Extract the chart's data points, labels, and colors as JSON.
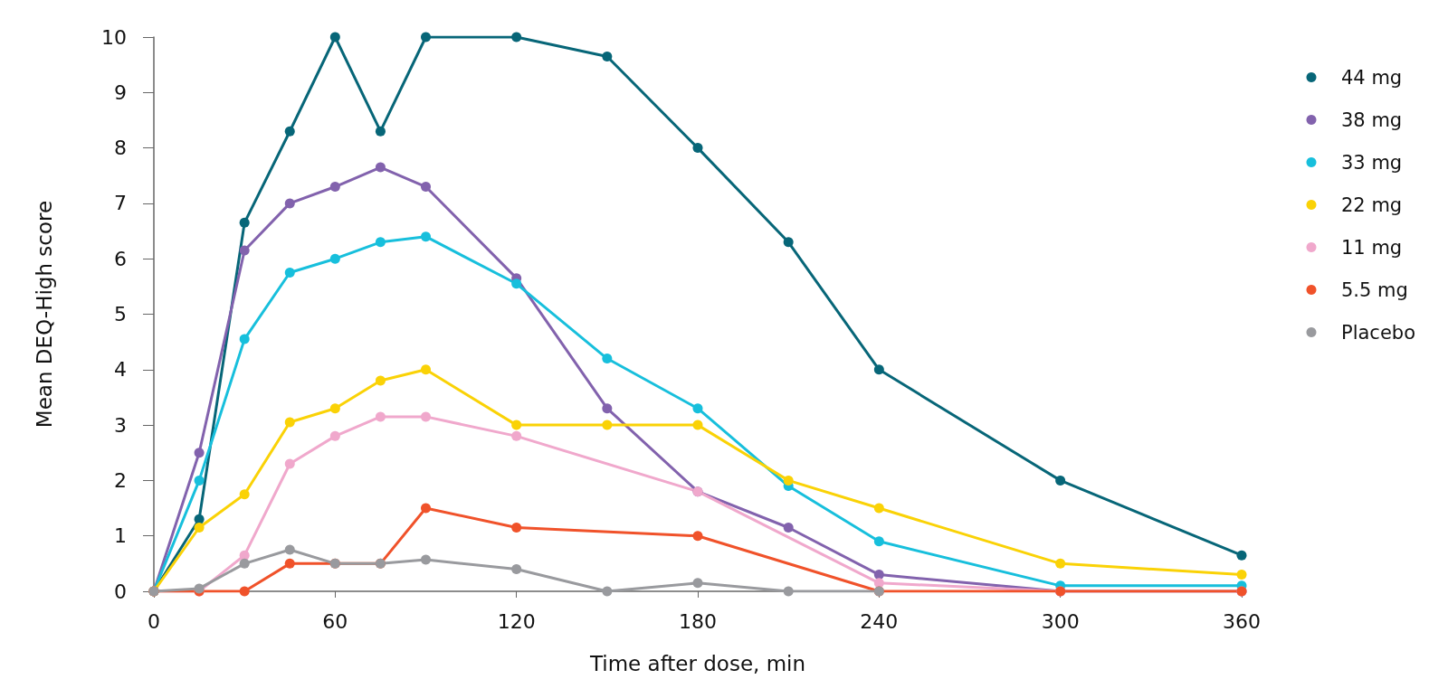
{
  "chart_data": {
    "type": "line",
    "xlabel": "Time after dose, min",
    "ylabel": "Mean DEQ-High score",
    "xlim": [
      0,
      360
    ],
    "xticks": [
      0,
      60,
      120,
      180,
      240,
      300,
      360
    ],
    "ylim": [
      0,
      10
    ],
    "yticks": [
      0,
      1,
      2,
      3,
      4,
      5,
      6,
      7,
      8,
      9,
      10
    ],
    "grid": false,
    "legend": "right",
    "marker": "circle",
    "line_style": "solid",
    "series": [
      {
        "name": "44 mg",
        "color": "#076678",
        "x": [
          0,
          15,
          30,
          45,
          60,
          75,
          90,
          120,
          150,
          180,
          210,
          240,
          300,
          360
        ],
        "values": [
          0,
          1.3,
          6.65,
          8.3,
          10,
          8.3,
          10,
          10,
          9.65,
          8,
          6.3,
          4,
          2,
          0.65
        ]
      },
      {
        "name": "38 mg",
        "color": "#8262ad",
        "x": [
          0,
          15,
          30,
          45,
          60,
          75,
          90,
          120,
          150,
          180,
          210,
          240,
          300,
          360
        ],
        "values": [
          0,
          2.5,
          6.15,
          7,
          7.3,
          7.65,
          7.3,
          5.65,
          3.3,
          1.8,
          1.15,
          0.3,
          0,
          0
        ]
      },
      {
        "name": "33 mg",
        "color": "#17bfdc",
        "x": [
          0,
          15,
          30,
          45,
          60,
          75,
          90,
          120,
          150,
          180,
          210,
          240,
          300,
          360
        ],
        "values": [
          0,
          2,
          4.55,
          5.75,
          6,
          6.3,
          6.4,
          5.55,
          4.2,
          3.3,
          1.9,
          0.9,
          0.1,
          0.1
        ]
      },
      {
        "name": "22 mg",
        "color": "#fad206",
        "x": [
          0,
          15,
          30,
          45,
          60,
          75,
          90,
          120,
          150,
          180,
          210,
          240,
          300,
          360
        ],
        "values": [
          0,
          1.15,
          1.75,
          3.05,
          3.3,
          3.8,
          4,
          3,
          3,
          3,
          2,
          1.5,
          0.5,
          0.3
        ]
      },
      {
        "name": "11 mg",
        "color": "#f0a8cc",
        "x": [
          0,
          15,
          30,
          45,
          60,
          75,
          90,
          120,
          180,
          240,
          300,
          360
        ],
        "values": [
          0,
          0,
          0.65,
          2.3,
          2.8,
          3.15,
          3.15,
          2.8,
          1.8,
          0.15,
          0,
          0
        ]
      },
      {
        "name": "5.5 mg",
        "color": "#f0522a",
        "x": [
          0,
          15,
          30,
          45,
          60,
          75,
          90,
          120,
          180,
          240,
          300,
          360
        ],
        "values": [
          0,
          0,
          0,
          0.5,
          0.5,
          0.5,
          1.5,
          1.15,
          1,
          0,
          0,
          0
        ]
      },
      {
        "name": "Placebo",
        "color": "#999a9e",
        "x": [
          0,
          15,
          30,
          45,
          60,
          75,
          90,
          120,
          150,
          180,
          210,
          240
        ],
        "values": [
          0,
          0.05,
          0.5,
          0.75,
          0.5,
          0.5,
          0.57,
          0.4,
          0,
          0.15,
          0,
          0
        ]
      }
    ]
  }
}
